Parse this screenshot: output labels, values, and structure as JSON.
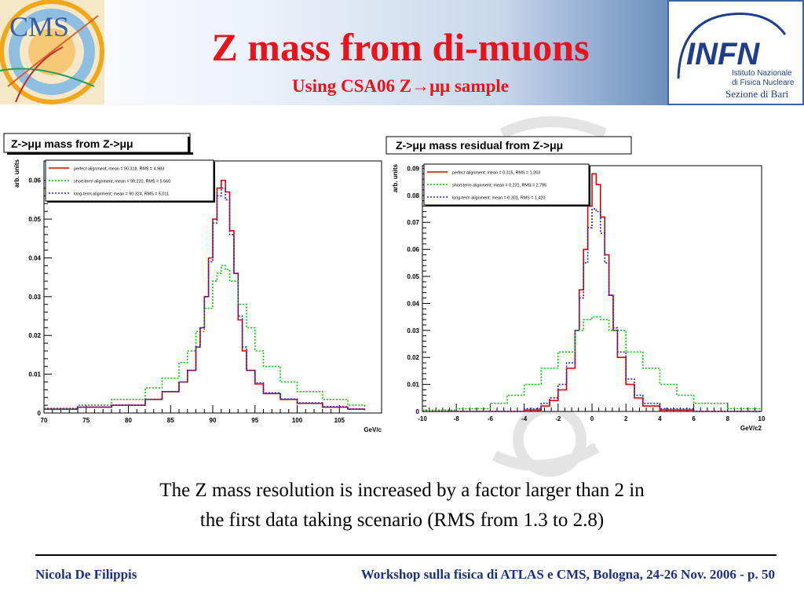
{
  "slide": {
    "title": "Z mass from di-muons",
    "subtitle": "Using CSA06 Z→μμ sample",
    "caption_line1": "The Z mass resolution is increased by a factor larger than 2 in",
    "caption_line2": "the first data taking scenario (RMS from 1.3 to 2.8)",
    "footer_author": "Nicola De Filippis",
    "footer_event": "Workshop sulla fisica di ATLAS e CMS, Bologna, 24-26 Nov. 2006 - p. 50"
  },
  "logos": {
    "cms_text": "CMS",
    "infn_text": "INFN",
    "infn_line1": "Istituto Nazionale",
    "infn_line2": "di Fisica Nucleare",
    "infn_line3": "Sezione di Bari"
  },
  "colors": {
    "title": "#e8141b",
    "footer": "#1a2f8a",
    "perfect": "#e00000",
    "short_term": "#00cc00",
    "long_term": "#2020d0"
  },
  "chart_data": [
    {
      "type": "line",
      "title": "Z->μμ mass from Z->μμ",
      "xlabel": "GeV/c",
      "ylabel": "arb. units",
      "xlim": [
        70,
        110
      ],
      "ylim": [
        0,
        0.065
      ],
      "xticks": [
        70,
        75,
        80,
        85,
        90,
        95,
        100,
        105
      ],
      "yticks": [
        0,
        0.01,
        0.02,
        0.03,
        0.04,
        0.05,
        0.06
      ],
      "grid": false,
      "legend_position": "top-left",
      "step": true,
      "series": [
        {
          "name": "perfect alignment;      mean = 90.318, RMS = 4.983",
          "color": "#e00000",
          "dash": "solid",
          "x": [
            70,
            74,
            78,
            82,
            84,
            86,
            87,
            88,
            88.5,
            89,
            89.5,
            90,
            90.5,
            91,
            91.5,
            92,
            92.5,
            93,
            93.5,
            94,
            95,
            96,
            98,
            100,
            103,
            106,
            108
          ],
          "y": [
            0.001,
            0.0015,
            0.002,
            0.0035,
            0.0055,
            0.008,
            0.011,
            0.017,
            0.022,
            0.03,
            0.04,
            0.05,
            0.058,
            0.06,
            0.057,
            0.047,
            0.036,
            0.024,
            0.016,
            0.011,
            0.0075,
            0.005,
            0.0035,
            0.0025,
            0.0015,
            0.001,
            0.0007
          ]
        },
        {
          "name": "short-term alignment;   mean = 90.220, RMS = 5.660",
          "color": "#00cc00",
          "dash": "dotted",
          "x": [
            70,
            74,
            78,
            82,
            84,
            86,
            87,
            88,
            89,
            90,
            90.5,
            91,
            91.5,
            92,
            93,
            94,
            95,
            96,
            98,
            100,
            103,
            106,
            108
          ],
          "y": [
            0.0012,
            0.002,
            0.0035,
            0.0065,
            0.009,
            0.013,
            0.016,
            0.021,
            0.027,
            0.034,
            0.036,
            0.038,
            0.037,
            0.034,
            0.028,
            0.022,
            0.016,
            0.012,
            0.008,
            0.0055,
            0.0035,
            0.002,
            0.0015
          ]
        },
        {
          "name": "long-term alignment;   mean = 90.324, RMS = 5.011",
          "color": "#2020d0",
          "dash": "dotted",
          "x": [
            70,
            74,
            78,
            82,
            84,
            86,
            87,
            88,
            88.5,
            89,
            89.5,
            90,
            90.5,
            91,
            91.5,
            92,
            92.5,
            93,
            93.5,
            94,
            95,
            96,
            98,
            100,
            103,
            106,
            108
          ],
          "y": [
            0.001,
            0.0015,
            0.002,
            0.0035,
            0.0055,
            0.008,
            0.011,
            0.017,
            0.022,
            0.03,
            0.039,
            0.049,
            0.056,
            0.058,
            0.055,
            0.046,
            0.036,
            0.025,
            0.017,
            0.011,
            0.0078,
            0.0052,
            0.0036,
            0.0026,
            0.0016,
            0.001,
            0.0008
          ]
        }
      ]
    },
    {
      "type": "line",
      "title": "Z->μμ mass residual from Z->μμ",
      "xlabel": "GeV/c2",
      "ylabel": "arb. units",
      "xlim": [
        -10,
        10
      ],
      "ylim": [
        0,
        0.091
      ],
      "xticks": [
        -10,
        -8,
        -6,
        -4,
        -2,
        0,
        2,
        4,
        6,
        8,
        10
      ],
      "yticks": [
        0,
        0.01,
        0.02,
        0.03,
        0.04,
        0.05,
        0.06,
        0.07,
        0.08,
        0.09
      ],
      "grid": false,
      "legend_position": "top-left",
      "step": true,
      "series": [
        {
          "name": "perfect alignment;      mean = 0.315, RMS = 1.263",
          "color": "#e00000",
          "dash": "solid",
          "x": [
            -10,
            -6,
            -4,
            -3,
            -2.5,
            -2,
            -1.5,
            -1,
            -0.75,
            -0.5,
            -0.25,
            0,
            0.25,
            0.5,
            0.75,
            1,
            1.25,
            1.5,
            2,
            2.5,
            3,
            4,
            6,
            10
          ],
          "y": [
            0,
            0,
            0.0005,
            0.002,
            0.004,
            0.008,
            0.016,
            0.03,
            0.045,
            0.06,
            0.076,
            0.088,
            0.084,
            0.072,
            0.058,
            0.043,
            0.03,
            0.02,
            0.01,
            0.005,
            0.002,
            0.0005,
            0,
            0
          ]
        },
        {
          "name": "short-term alignment;  mean = 0.231, RMS = 2.795",
          "color": "#00cc00",
          "dash": "dotted",
          "x": [
            -10,
            -8,
            -6,
            -5,
            -4,
            -3,
            -2,
            -1,
            -0.5,
            0,
            0.5,
            1,
            2,
            3,
            4,
            5,
            6,
            8,
            10
          ],
          "y": [
            0.0005,
            0.001,
            0.003,
            0.006,
            0.01,
            0.016,
            0.022,
            0.03,
            0.034,
            0.035,
            0.034,
            0.03,
            0.022,
            0.016,
            0.01,
            0.006,
            0.003,
            0.001,
            0.0005
          ]
        },
        {
          "name": "long-term alignment;   mean = 0.301, RMS = 1.420",
          "color": "#2020d0",
          "dash": "dotted",
          "x": [
            -10,
            -6,
            -4,
            -3,
            -2.5,
            -2,
            -1.5,
            -1,
            -0.75,
            -0.5,
            -0.25,
            0,
            0.25,
            0.5,
            0.75,
            1,
            1.25,
            1.5,
            2,
            2.5,
            3,
            4,
            6,
            10
          ],
          "y": [
            0,
            0,
            0.001,
            0.003,
            0.005,
            0.01,
            0.018,
            0.03,
            0.042,
            0.055,
            0.068,
            0.075,
            0.074,
            0.066,
            0.055,
            0.043,
            0.031,
            0.022,
            0.012,
            0.006,
            0.003,
            0.001,
            0,
            0
          ]
        }
      ]
    }
  ]
}
